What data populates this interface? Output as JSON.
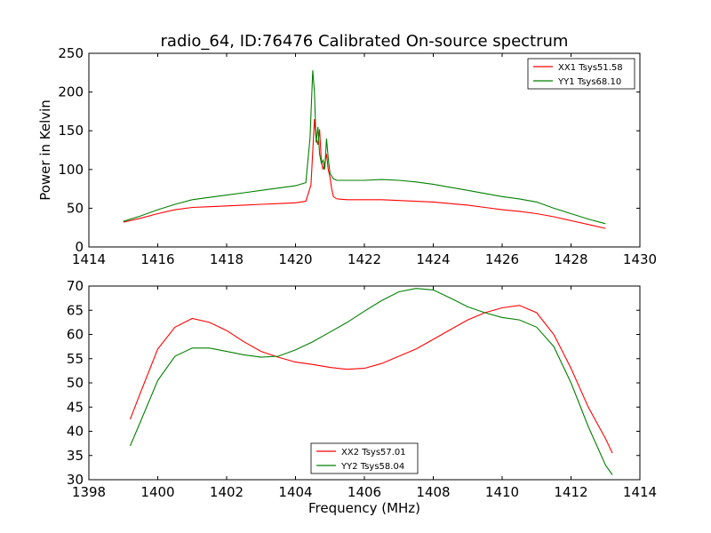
{
  "figure": {
    "title": "radio_64, ID:76476 Calibrated On-source spectrum",
    "xlabel": "Frequency (MHz)",
    "ylabel": "Power in Kelvin"
  },
  "colors": {
    "red": "#ff0000",
    "green": "#008000",
    "axes": "#000000"
  },
  "chart_data": [
    {
      "type": "line",
      "xlim": [
        1414,
        1430
      ],
      "ylim": [
        0,
        250
      ],
      "xticks": [
        1414,
        1416,
        1418,
        1420,
        1422,
        1424,
        1426,
        1428,
        1430
      ],
      "yticks": [
        0,
        50,
        100,
        150,
        200,
        250
      ],
      "grid": false,
      "legend_position": "top-right",
      "series": [
        {
          "name": "XX1 Tsys51.58",
          "color": "#ff0000",
          "x": [
            1415.0,
            1415.5,
            1416.0,
            1416.5,
            1417.0,
            1417.5,
            1418.0,
            1418.5,
            1419.0,
            1419.5,
            1420.0,
            1420.3,
            1420.45,
            1420.55,
            1420.6,
            1420.65,
            1420.7,
            1420.75,
            1420.8,
            1420.85,
            1420.9,
            1420.95,
            1421.0,
            1421.05,
            1421.1,
            1421.2,
            1421.5,
            1422.0,
            1422.5,
            1423.0,
            1423.5,
            1424.0,
            1424.5,
            1425.0,
            1425.5,
            1426.0,
            1426.5,
            1427.0,
            1427.5,
            1428.0,
            1428.5,
            1429.0
          ],
          "y": [
            32,
            37,
            43,
            48,
            51,
            52,
            53,
            54,
            55,
            56,
            57,
            59,
            80,
            165,
            140,
            132,
            152,
            110,
            100,
            108,
            120,
            100,
            90,
            75,
            65,
            62,
            61,
            61,
            61,
            60,
            59,
            58,
            56,
            54,
            51,
            48,
            46,
            43,
            39,
            34,
            29,
            24
          ]
        },
        {
          "name": "YY1 Tsys68.10",
          "color": "#008000",
          "x": [
            1415.0,
            1415.5,
            1416.0,
            1416.5,
            1417.0,
            1417.5,
            1418.0,
            1418.5,
            1419.0,
            1419.5,
            1420.0,
            1420.3,
            1420.42,
            1420.5,
            1420.55,
            1420.6,
            1420.65,
            1420.7,
            1420.75,
            1420.8,
            1420.85,
            1420.9,
            1420.95,
            1421.0,
            1421.1,
            1421.2,
            1421.5,
            1422.0,
            1422.5,
            1423.0,
            1423.5,
            1424.0,
            1424.5,
            1425.0,
            1425.5,
            1426.0,
            1426.5,
            1427.0,
            1427.5,
            1428.0,
            1428.5,
            1429.0
          ],
          "y": [
            33,
            40,
            48,
            55,
            61,
            64,
            67,
            70,
            73,
            76,
            79,
            83,
            140,
            228,
            200,
            135,
            155,
            120,
            108,
            112,
            100,
            140,
            115,
            95,
            88,
            86,
            86,
            86,
            87,
            86,
            84,
            81,
            77,
            73,
            69,
            65,
            62,
            58,
            50,
            43,
            36,
            30
          ]
        }
      ]
    },
    {
      "type": "line",
      "xlim": [
        1398,
        1414
      ],
      "ylim": [
        30,
        70
      ],
      "xticks": [
        1398,
        1400,
        1402,
        1404,
        1406,
        1408,
        1410,
        1412,
        1414
      ],
      "yticks": [
        30,
        35,
        40,
        45,
        50,
        55,
        60,
        65,
        70
      ],
      "grid": false,
      "legend_position": "bottom-center",
      "series": [
        {
          "name": "XX2 Tsys57.01",
          "color": "#ff0000",
          "x": [
            1399.2,
            1399.5,
            1400.0,
            1400.5,
            1401.0,
            1401.5,
            1402.0,
            1402.5,
            1403.0,
            1403.5,
            1404.0,
            1404.5,
            1405.0,
            1405.5,
            1406.0,
            1406.5,
            1407.0,
            1407.5,
            1408.0,
            1408.5,
            1409.0,
            1409.5,
            1410.0,
            1410.5,
            1411.0,
            1411.5,
            1412.0,
            1412.5,
            1413.0,
            1413.2
          ],
          "y": [
            42.5,
            48,
            57,
            61.5,
            63.3,
            62.5,
            60.8,
            58.5,
            56.5,
            55.3,
            54.3,
            53.8,
            53.2,
            52.8,
            53.0,
            54.0,
            55.5,
            57,
            59,
            61,
            63,
            64.5,
            65.5,
            66,
            64.5,
            60,
            53,
            45,
            38.5,
            35.5
          ]
        },
        {
          "name": "YY2 Tsys58.04",
          "color": "#008000",
          "x": [
            1399.2,
            1399.5,
            1400.0,
            1400.5,
            1401.0,
            1401.5,
            1402.0,
            1402.5,
            1403.0,
            1403.5,
            1404.0,
            1404.5,
            1405.0,
            1405.5,
            1406.0,
            1406.5,
            1407.0,
            1407.5,
            1408.0,
            1408.5,
            1409.0,
            1409.5,
            1410.0,
            1410.5,
            1411.0,
            1411.5,
            1412.0,
            1412.5,
            1413.0,
            1413.2
          ],
          "y": [
            37,
            42,
            50.5,
            55.5,
            57.2,
            57.2,
            56.5,
            55.8,
            55.3,
            55.5,
            56.8,
            58.5,
            60.5,
            62.5,
            64.8,
            67,
            68.8,
            69.5,
            69.2,
            67.5,
            65.7,
            64.5,
            63.5,
            63,
            61.5,
            57.5,
            50,
            41,
            33,
            31
          ]
        }
      ]
    }
  ]
}
